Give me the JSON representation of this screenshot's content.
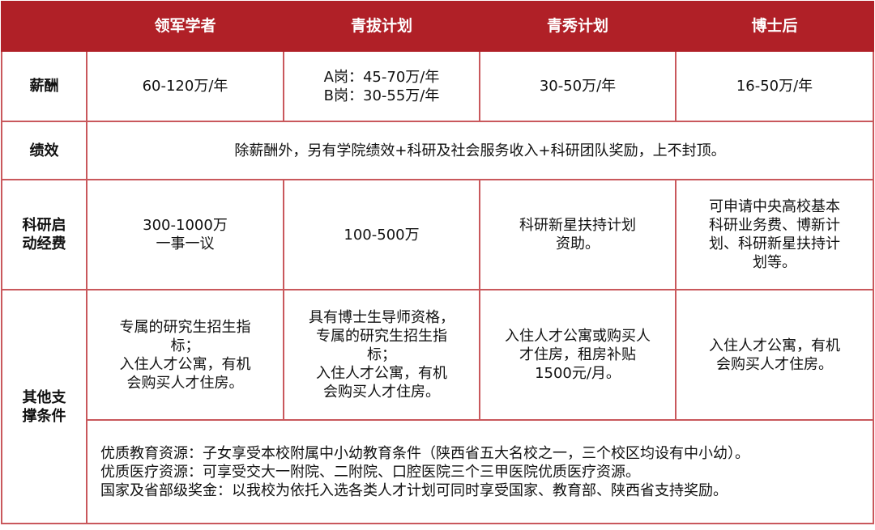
{
  "header": {
    "corner": "",
    "columns": [
      "领军学者",
      "青拔计划",
      "青秀计划",
      "博士后"
    ]
  },
  "rows": {
    "salary": {
      "label": "薪酬",
      "cells": [
        "60-120万/年",
        "A岗：45-70万/年\nB岗：30-55万/年",
        "30-50万/年",
        "16-50万/年"
      ]
    },
    "performance": {
      "label": "绩效",
      "text": "除薪酬外，另有学院绩效+科研及社会服务收入+科研团队奖励，上不封顶。"
    },
    "startup": {
      "label": "科研启\n动经费",
      "cells": [
        "300-1000万\n一事一议",
        "100-500万",
        "科研新星扶持计划\n资助。",
        "可申请中央高校基本\n科研业务费、博新计\n划、科研新星扶持计\n划等。"
      ]
    },
    "other": {
      "label": "其他支\n撑条件",
      "cells": [
        "专属的研究生招生指\n标；\n入住人才公寓，有机\n会购买人才住房。",
        "具有博士生导师资格，\n专属的研究生招生指\n标；\n入住人才公寓，有机\n会购买人才住房。",
        "入住人才公寓或购买人\n才住房，租房补贴\n1500元/月。",
        "入住人才公寓，有机\n会购买人才住房。"
      ],
      "shared": [
        "优质教育资源：子女享受本校附属中小幼教育条件（陕西省五大名校之一，三个校区均设有中小幼）。",
        "优质医疗资源：可享受交大一附院、二附院、口腔医院三个三甲医院优质医疗资源。",
        "国家及省部级奖金：以我校为依托入选各类人才计划可同时享受国家、教育部、陕西省支持奖励。"
      ]
    }
  },
  "colors": {
    "header_bg": "#b02027",
    "border": "#c9585c"
  }
}
